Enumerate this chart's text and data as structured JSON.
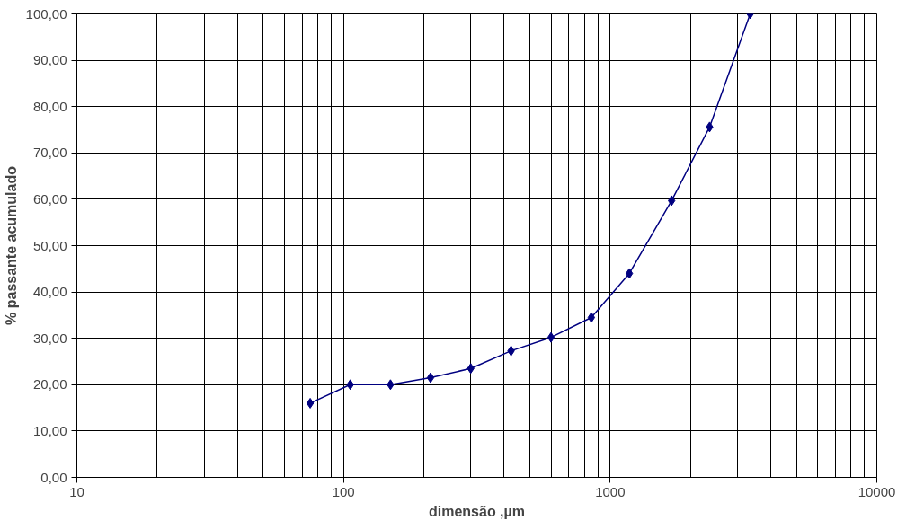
{
  "chart_data": {
    "type": "line",
    "xlabel": "dimensão ,µm",
    "ylabel": "% passante acumulado",
    "x": [
      75,
      106,
      150,
      212,
      300,
      425,
      600,
      850,
      1180,
      1700,
      2360,
      3350
    ],
    "series": [
      {
        "color": "#000080",
        "values": [
          16,
          20,
          20,
          21.5,
          23.5,
          27.3,
          30.2,
          34.5,
          44,
          59.7,
          75.6,
          100
        ]
      }
    ],
    "log": "x",
    "xlim": [
      10,
      10000
    ],
    "xticks": [
      10,
      100,
      1000,
      10000
    ],
    "ylim": [
      0,
      100
    ],
    "yticks": [
      {
        "value": 0,
        "label": "0,00"
      },
      {
        "value": 10,
        "label": "10,00"
      },
      {
        "value": 20,
        "label": "20,00"
      },
      {
        "value": 30,
        "label": "30,00"
      },
      {
        "value": 40,
        "label": "40,00"
      },
      {
        "value": 50,
        "label": "50,00"
      },
      {
        "value": 60,
        "label": "60,00"
      },
      {
        "value": 70,
        "label": "70,00"
      },
      {
        "value": 80,
        "label": "80,00"
      },
      {
        "value": 90,
        "label": "90,00"
      },
      {
        "value": 100,
        "label": "100,00"
      }
    ],
    "grid": true,
    "marker": "diamond",
    "line_style": "solid"
  }
}
